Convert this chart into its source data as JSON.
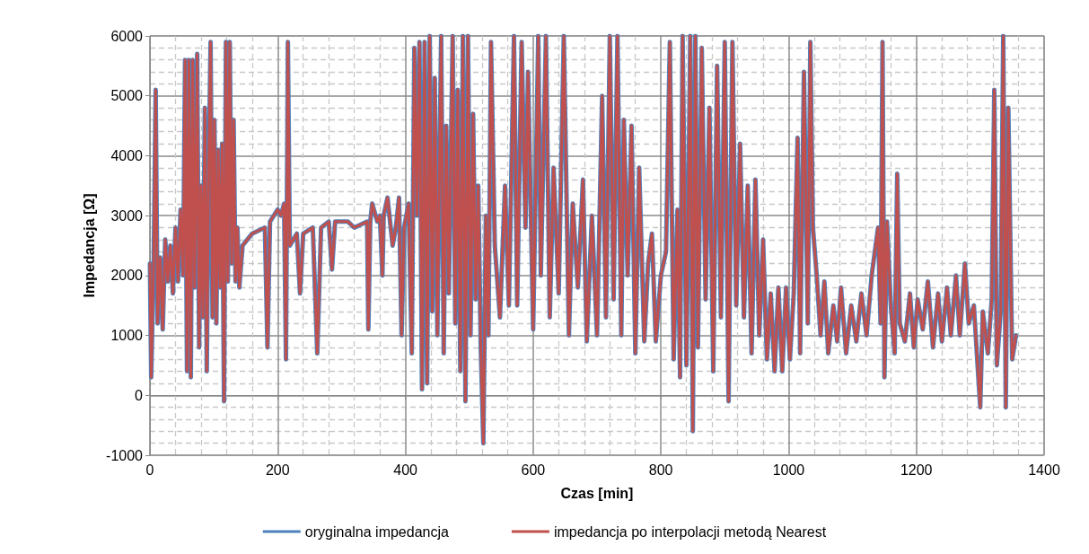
{
  "chart_data": {
    "type": "line",
    "xlabel": "Czas [min]",
    "ylabel": "Impedancja [Ω]",
    "xlim": [
      0,
      1400
    ],
    "xticks": [
      0,
      200,
      400,
      600,
      800,
      1000,
      1200,
      1400
    ],
    "ylim": [
      -1000,
      6000
    ],
    "yticks": [
      -1000,
      0,
      1000,
      2000,
      3000,
      4000,
      5000,
      6000
    ],
    "grid": true,
    "legend": "bottom",
    "marker": "none",
    "line_style": "solid",
    "x": [
      0,
      2,
      6,
      9,
      12,
      16,
      20,
      24,
      28,
      32,
      36,
      40,
      44,
      48,
      52,
      55,
      58,
      61,
      64,
      67,
      70,
      74,
      77,
      80,
      83,
      86,
      89,
      92,
      95,
      98,
      101,
      104,
      107,
      110,
      113,
      116,
      119,
      122,
      125,
      128,
      131,
      134,
      137,
      140,
      145,
      160,
      180,
      184,
      188,
      200,
      205,
      210,
      213,
      216,
      219,
      230,
      235,
      240,
      255,
      262,
      268,
      280,
      285,
      290,
      310,
      320,
      340,
      342,
      345,
      348,
      356,
      360,
      364,
      366,
      372,
      380,
      385,
      390,
      394,
      398,
      405,
      410,
      414,
      418,
      422,
      426,
      430,
      434,
      438,
      442,
      446,
      450,
      456,
      460,
      464,
      468,
      474,
      478,
      482,
      486,
      490,
      494,
      498,
      502,
      506,
      510,
      514,
      518,
      522,
      526,
      530,
      534,
      540,
      548,
      556,
      562,
      570,
      575,
      582,
      588,
      592,
      600,
      608,
      612,
      620,
      626,
      632,
      640,
      648,
      656,
      662,
      670,
      678,
      684,
      692,
      700,
      708,
      714,
      720,
      726,
      732,
      738,
      742,
      748,
      754,
      760,
      766,
      774,
      780,
      786,
      792,
      800,
      808,
      814,
      820,
      826,
      830,
      834,
      840,
      846,
      850,
      854,
      858,
      864,
      870,
      876,
      882,
      888,
      894,
      900,
      906,
      912,
      918,
      924,
      930,
      936,
      942,
      948,
      954,
      960,
      966,
      972,
      978,
      984,
      990,
      996,
      1002,
      1008,
      1014,
      1018,
      1024,
      1030,
      1034,
      1038,
      1044,
      1050,
      1056,
      1062,
      1070,
      1076,
      1082,
      1090,
      1098,
      1106,
      1114,
      1122,
      1130,
      1140,
      1144,
      1147,
      1150,
      1154,
      1160,
      1166,
      1170,
      1174,
      1182,
      1190,
      1196,
      1202,
      1210,
      1218,
      1226,
      1234,
      1240,
      1248,
      1254,
      1262,
      1268,
      1276,
      1282,
      1290,
      1300,
      1304,
      1312,
      1318,
      1322,
      1326,
      1332,
      1336,
      1340,
      1344,
      1350,
      1356
    ],
    "series": [
      {
        "name": "oryginalna impedancja",
        "color": "#4f81bd",
        "values": [
          2200,
          300,
          2300,
          5100,
          1200,
          2300,
          1100,
          2600,
          1900,
          2500,
          1700,
          2800,
          1900,
          3100,
          2000,
          5600,
          400,
          5600,
          300,
          5600,
          1800,
          5700,
          800,
          3500,
          1300,
          4800,
          400,
          3800,
          5900,
          1300,
          4600,
          1200,
          4100,
          1800,
          4200,
          -100,
          5900,
          1900,
          5900,
          2200,
          4600,
          1900,
          2800,
          1800,
          2500,
          2700,
          2800,
          800,
          2900,
          3100,
          3000,
          3200,
          600,
          5900,
          2500,
          2700,
          1700,
          2700,
          2800,
          700,
          2800,
          2900,
          2100,
          2900,
          2900,
          2800,
          2900,
          1100,
          2900,
          3200,
          2900,
          3000,
          2000,
          3000,
          3300,
          2500,
          2800,
          3300,
          1000,
          2800,
          3200,
          700,
          5800,
          3000,
          5900,
          100,
          5900,
          200,
          6000,
          1400,
          5300,
          1000,
          6000,
          700,
          4500,
          1700,
          6000,
          1200,
          5100,
          400,
          6000,
          -100,
          6000,
          1000,
          4700,
          1600,
          3500,
          800,
          -800,
          3000,
          1000,
          5900,
          2500,
          1300,
          3500,
          1500,
          6000,
          1500,
          5900,
          2800,
          5400,
          1100,
          6000,
          2000,
          6000,
          1300,
          3800,
          1700,
          6000,
          1000,
          3200,
          1800,
          3600,
          900,
          3000,
          1000,
          5000,
          1300,
          6000,
          1600,
          6000,
          1000,
          4600,
          2000,
          4500,
          700,
          3800,
          900,
          2200,
          2700,
          900,
          2000,
          2400,
          5900,
          600,
          3100,
          300,
          6000,
          500,
          6000,
          -600,
          6000,
          800,
          5800,
          1600,
          4800,
          400,
          5500,
          1300,
          5900,
          -100,
          5900,
          1500,
          4200,
          1300,
          3500,
          700,
          3600,
          1000,
          2600,
          600,
          1700,
          400,
          1800,
          400,
          1800,
          600,
          1700,
          4300,
          700,
          5400,
          1200,
          5900,
          2800,
          2000,
          1000,
          1900,
          700,
          1500,
          900,
          1800,
          700,
          1500,
          900,
          1700,
          1000,
          2000,
          2800,
          1200,
          5900,
          300,
          2900,
          1500,
          700,
          3700,
          1200,
          900,
          1700,
          800,
          1600,
          1100,
          1900,
          800,
          1700,
          900,
          1800,
          1000,
          2000,
          1000,
          2200,
          1200,
          1500,
          -200,
          1400,
          700,
          1600,
          5100,
          500,
          1400,
          6000,
          -200,
          4800,
          600,
          1000
        ]
      },
      {
        "name": "impedancja po interpolacji metodą Nearest",
        "color": "#c0504d",
        "values": [
          2200,
          300,
          2300,
          5100,
          1200,
          2300,
          1100,
          2600,
          1900,
          2500,
          1700,
          2800,
          1900,
          3100,
          2000,
          5600,
          400,
          5600,
          300,
          5600,
          1800,
          5700,
          800,
          3500,
          1300,
          4800,
          400,
          3800,
          5900,
          1300,
          4600,
          1200,
          4100,
          1800,
          4200,
          -100,
          5900,
          1900,
          5900,
          2200,
          4600,
          1900,
          2800,
          1800,
          2500,
          2700,
          2800,
          800,
          2900,
          3100,
          3000,
          3200,
          600,
          5900,
          2500,
          2700,
          1700,
          2700,
          2800,
          700,
          2800,
          2900,
          2100,
          2900,
          2900,
          2800,
          2900,
          1100,
          2900,
          3200,
          2900,
          3000,
          2000,
          3000,
          3300,
          2500,
          2800,
          3300,
          1000,
          2800,
          3200,
          700,
          5800,
          3000,
          5900,
          100,
          5900,
          200,
          6000,
          1400,
          5300,
          1000,
          6000,
          700,
          4500,
          1700,
          6000,
          1200,
          5100,
          400,
          6000,
          -100,
          6000,
          1000,
          4700,
          1600,
          3500,
          800,
          -800,
          3000,
          1000,
          5900,
          2500,
          1300,
          3500,
          1500,
          6000,
          1500,
          5900,
          2800,
          5400,
          1100,
          6000,
          2000,
          6000,
          1300,
          3800,
          1700,
          6000,
          1000,
          3200,
          1800,
          3600,
          900,
          3000,
          1000,
          5000,
          1300,
          6000,
          1600,
          6000,
          1000,
          4600,
          2000,
          4500,
          700,
          3800,
          900,
          2200,
          2700,
          900,
          2000,
          2400,
          5900,
          600,
          3100,
          300,
          6000,
          500,
          6000,
          -600,
          6000,
          800,
          5800,
          1600,
          4800,
          400,
          5500,
          1300,
          5900,
          -100,
          5900,
          1500,
          4200,
          1300,
          3500,
          700,
          3600,
          1000,
          2600,
          600,
          1700,
          400,
          1800,
          400,
          1800,
          600,
          1700,
          4300,
          700,
          5400,
          1200,
          5900,
          2800,
          2000,
          1000,
          1900,
          700,
          1500,
          900,
          1800,
          700,
          1500,
          900,
          1700,
          1000,
          2000,
          2800,
          1200,
          5900,
          300,
          2900,
          1500,
          700,
          3700,
          1200,
          900,
          1700,
          800,
          1600,
          1100,
          1900,
          800,
          1700,
          900,
          1800,
          1000,
          2000,
          1000,
          2200,
          1200,
          1500,
          -200,
          1400,
          700,
          1600,
          5100,
          500,
          1400,
          6000,
          -200,
          4800,
          600,
          1000
        ]
      }
    ]
  }
}
